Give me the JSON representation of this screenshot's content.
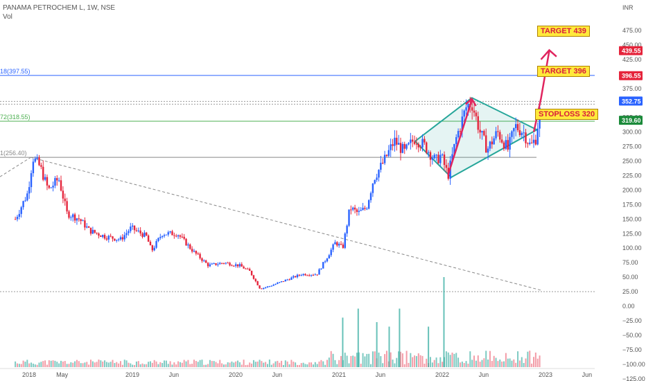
{
  "header": {
    "symbol_line": "PANAMA PETROCHEM L, 1W, NSE",
    "vol_label": "Vol"
  },
  "currency": "INR",
  "annotations": {
    "target1": "TARGET 439",
    "target2": "TARGET 396",
    "stoploss": "STOPLOSS 320"
  },
  "fib_labels": [
    {
      "text": "1(256.40)",
      "value": 256.4,
      "color": "#888888"
    },
    {
      "text": "72(318.55)",
      "value": 318.55,
      "color": "#4caf50"
    },
    {
      "text": "18(397.55)",
      "value": 397.55,
      "color": "#2962ff"
    }
  ],
  "price_tags": [
    {
      "text": "439.55",
      "value": 439.55,
      "color": "#e5243b"
    },
    {
      "text": "396.55",
      "value": 396.55,
      "color": "#e5243b"
    },
    {
      "text": "352.75",
      "value": 352.75,
      "color": "#2962ff"
    },
    {
      "text": "319.60",
      "value": 319.6,
      "color": "#1b8a3a"
    }
  ],
  "chart_data": {
    "type": "candlestick",
    "timeframe": "1W",
    "x_ticks": [
      "2018",
      "May",
      "2019",
      "Jun",
      "2020",
      "Jun",
      "2021",
      "Jun",
      "2022",
      "Jun",
      "2023",
      "Jun"
    ],
    "y_ticks": [
      "475.00",
      "450.00",
      "425.00",
      "400.00",
      "375.00",
      "350.00",
      "325.00",
      "300.00",
      "275.00",
      "250.00",
      "225.00",
      "200.00",
      "175.00",
      "150.00",
      "125.00",
      "100.00",
      "75.00",
      "50.00",
      "25.00",
      "0.00",
      "−25.00",
      "−50.00",
      "−75.00",
      "−100.00",
      "−125.00"
    ],
    "ylim": [
      -135,
      490
    ],
    "close_path": [
      {
        "t": 2017.88,
        "v": 150
      },
      {
        "t": 2018.0,
        "v": 195
      },
      {
        "t": 2018.05,
        "v": 256
      },
      {
        "t": 2018.12,
        "v": 240
      },
      {
        "t": 2018.2,
        "v": 200
      },
      {
        "t": 2018.3,
        "v": 220
      },
      {
        "t": 2018.38,
        "v": 160
      },
      {
        "t": 2018.5,
        "v": 150
      },
      {
        "t": 2018.6,
        "v": 130
      },
      {
        "t": 2018.75,
        "v": 120
      },
      {
        "t": 2018.9,
        "v": 115
      },
      {
        "t": 2019.0,
        "v": 135
      },
      {
        "t": 2019.15,
        "v": 120
      },
      {
        "t": 2019.2,
        "v": 95
      },
      {
        "t": 2019.3,
        "v": 125
      },
      {
        "t": 2019.45,
        "v": 125
      },
      {
        "t": 2019.6,
        "v": 95
      },
      {
        "t": 2019.75,
        "v": 70
      },
      {
        "t": 2019.9,
        "v": 75
      },
      {
        "t": 2020.05,
        "v": 70
      },
      {
        "t": 2020.15,
        "v": 60
      },
      {
        "t": 2020.25,
        "v": 30
      },
      {
        "t": 2020.35,
        "v": 35
      },
      {
        "t": 2020.5,
        "v": 45
      },
      {
        "t": 2020.65,
        "v": 55
      },
      {
        "t": 2020.8,
        "v": 55
      },
      {
        "t": 2020.9,
        "v": 85
      },
      {
        "t": 2020.98,
        "v": 110
      },
      {
        "t": 2021.05,
        "v": 100
      },
      {
        "t": 2021.12,
        "v": 170
      },
      {
        "t": 2021.2,
        "v": 160
      },
      {
        "t": 2021.28,
        "v": 170
      },
      {
        "t": 2021.35,
        "v": 220
      },
      {
        "t": 2021.45,
        "v": 250
      },
      {
        "t": 2021.55,
        "v": 285
      },
      {
        "t": 2021.65,
        "v": 265
      },
      {
        "t": 2021.75,
        "v": 290
      },
      {
        "t": 2021.85,
        "v": 275
      },
      {
        "t": 2021.95,
        "v": 250
      },
      {
        "t": 2022.0,
        "v": 260
      },
      {
        "t": 2022.07,
        "v": 225
      },
      {
        "t": 2022.15,
        "v": 290
      },
      {
        "t": 2022.25,
        "v": 345
      },
      {
        "t": 2022.3,
        "v": 350
      },
      {
        "t": 2022.38,
        "v": 300
      },
      {
        "t": 2022.45,
        "v": 270
      },
      {
        "t": 2022.55,
        "v": 300
      },
      {
        "t": 2022.65,
        "v": 270
      },
      {
        "t": 2022.72,
        "v": 310
      },
      {
        "t": 2022.8,
        "v": 300
      },
      {
        "t": 2022.87,
        "v": 275
      },
      {
        "t": 2022.92,
        "v": 290
      },
      {
        "t": 2022.97,
        "v": 352
      }
    ],
    "volume_spikes": [
      {
        "t": 2021.05,
        "v": 0.55
      },
      {
        "t": 2021.2,
        "v": 0.65
      },
      {
        "t": 2021.38,
        "v": 0.5
      },
      {
        "t": 2021.5,
        "v": 0.45
      },
      {
        "t": 2021.6,
        "v": 0.65
      },
      {
        "t": 2022.03,
        "v": 1.0
      },
      {
        "t": 2021.88,
        "v": 0.45
      }
    ]
  }
}
